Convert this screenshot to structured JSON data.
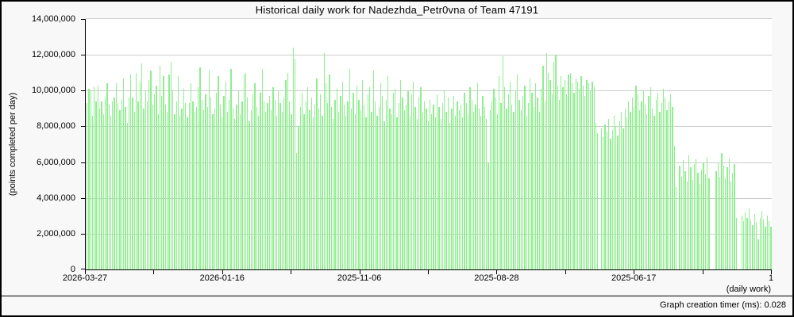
{
  "title": "Historical daily work for Nadezhda_Petr0vna of Team 47191",
  "footer": {
    "label": "Graph creation timer (ms): 0.028"
  },
  "chart_data": {
    "type": "bar",
    "title": "Historical daily work for Nadezhda_Petr0vna of Team 47191",
    "ylabel": "(points completed per day)",
    "xlabel_right": "(daily work)",
    "ylim": [
      0,
      14000000
    ],
    "grid": true,
    "legend": "none",
    "bar_color": "#90EE90",
    "grid_color": "#cccccc",
    "background_color": "#f8f8f8",
    "plot_background_color": "#ffffff",
    "time_direction": "most recent day on the left, oldest day (1) on the right",
    "y_tick_labels": [
      "14,000,000",
      "12,000,000",
      "10,000,000",
      "8,000,000",
      "6,000,000",
      "4,000,000",
      "2,000,000",
      "0"
    ],
    "x_ticks": [
      {
        "label": "2026-03-27",
        "pos": 0
      },
      {
        "label": "2026-01-16",
        "pos": 20
      },
      {
        "label": "2025-11-06",
        "pos": 40
      },
      {
        "label": "2025-08-28",
        "pos": 60
      },
      {
        "label": "2025-06-17",
        "pos": 80
      },
      {
        "label": "1",
        "pos": 100
      }
    ],
    "x_minor_tick_positions": [
      10,
      30,
      50,
      70,
      90
    ],
    "value_unit": "millions of points per day (0 = no work recorded that day)",
    "values": [
      9.3,
      10.1,
      10.0,
      8.6,
      10.2,
      9.4,
      10.3,
      9.0,
      9.4,
      8.7,
      9.6,
      10.4,
      9.2,
      8.6,
      9.4,
      9.6,
      10.4,
      9.3,
      8.9,
      9.5,
      10.7,
      9.1,
      8.2,
      9.6,
      10.9,
      9.6,
      8.8,
      11.0,
      9.4,
      10.5,
      11.5,
      9.0,
      10.0,
      9.4,
      10.6,
      11.1,
      9.2,
      9.8,
      10.3,
      8.7,
      11.4,
      9.7,
      10.8,
      9.2,
      8.8,
      10.9,
      11.6,
      10.0,
      8.7,
      9.4,
      10.8,
      8.6,
      9.0,
      10.1,
      9.3,
      8.5,
      9.3,
      10.4,
      9.4,
      8.8,
      9.1,
      10.2,
      11.3,
      9.5,
      8.9,
      9.8,
      9.1,
      11.1,
      9.6,
      8.7,
      9.0,
      9.9,
      10.8,
      9.2,
      8.5,
      9.7,
      10.5,
      8.8,
      9.5,
      11.2,
      9.0,
      8.4,
      9.2,
      10.0,
      8.7,
      9.4,
      10.9,
      11.0,
      9.6,
      8.3,
      8.9,
      9.8,
      10.4,
      9.1,
      8.6,
      9.9,
      11.2,
      9.4,
      8.8,
      9.3,
      9.7,
      8.9,
      10.2,
      9.5,
      8.6,
      10.0,
      9.3,
      8.8,
      9.6,
      10.6,
      11.0,
      9.4,
      8.7,
      12.4,
      11.8,
      6.5,
      8.0,
      9.1,
      9.9,
      8.7,
      9.4,
      10.2,
      8.9,
      9.6,
      8.5,
      9.2,
      10.7,
      9.0,
      9.8,
      8.6,
      12.1,
      10.4,
      9.3,
      10.9,
      9.1,
      8.4,
      9.5,
      10.1,
      8.8,
      9.7,
      10.5,
      9.2,
      8.6,
      9.4,
      11.2,
      9.0,
      9.9,
      8.7,
      10.3,
      9.5,
      8.9,
      10.6,
      9.2,
      8.5,
      9.8,
      10.2,
      8.8,
      11.1,
      9.4,
      8.6,
      9.1,
      10.4,
      9.7,
      8.3,
      9.5,
      10.8,
      9.0,
      8.7,
      9.9,
      10.1,
      8.5,
      9.3,
      10.6,
      9.6,
      8.9,
      9.2,
      10.0,
      8.6,
      9.8,
      10.5,
      9.1,
      8.4,
      9.6,
      10.2,
      8.8,
      9.4,
      9.0,
      8.3,
      9.5,
      8.7,
      9.2,
      8.5,
      9.8,
      9.1,
      8.4,
      9.3,
      10.0,
      8.8,
      9.6,
      8.2,
      9.0,
      9.7,
      8.6,
      9.4,
      8.9,
      9.2,
      8.5,
      9.9,
      9.3,
      8.7,
      10.2,
      9.5,
      8.8,
      9.2,
      10.4,
      9.0,
      8.6,
      9.7,
      9.1,
      8.4,
      6.0,
      8.9,
      9.4,
      10.1,
      9.6,
      8.7,
      10.8,
      9.3,
      11.9,
      10.2,
      9.0,
      9.8,
      10.5,
      9.2,
      8.8,
      10.0,
      10.9,
      9.5,
      8.9,
      9.7,
      10.3,
      8.6,
      9.3,
      10.7,
      9.9,
      9.1,
      10.4,
      9.6,
      8.8,
      10.1,
      11.4,
      9.4,
      12.1,
      11.0,
      10.6,
      9.8,
      11.6,
      12.0,
      10.3,
      9.5,
      10.8,
      10.2,
      10.6,
      9.8,
      10.9,
      11.0,
      10.4,
      9.9,
      10.7,
      10.5,
      10.1,
      10.8,
      10.3,
      9.7,
      10.6,
      10.4,
      10.0,
      10.5,
      10.2,
      8.2,
      7.6,
      0,
      7.9,
      7.4,
      8.1,
      7.7,
      8.4,
      7.3,
      7.8,
      8.6,
      8.0,
      7.5,
      8.3,
      8.8,
      7.9,
      9.0,
      8.5,
      9.4,
      8.8,
      9.6,
      9.1,
      10.3,
      9.8,
      8.9,
      9.4,
      10.0,
      9.2,
      8.7,
      9.7,
      10.2,
      9.0,
      8.6,
      9.5,
      9.9,
      8.8,
      9.3,
      10.1,
      9.6,
      8.9,
      9.4,
      9.8,
      9.1,
      6.9,
      4.6,
      0,
      5.8,
      5.2,
      6.1,
      5.5,
      4.9,
      6.4,
      5.7,
      5.0,
      5.9,
      6.2,
      5.4,
      4.8,
      5.6,
      6.0,
      5.3,
      6.3,
      5.1,
      0,
      0,
      0,
      5.5,
      6.0,
      5.2,
      6.5,
      5.8,
      5.1,
      5.7,
      6.2,
      4.9,
      5.4,
      5.9,
      2.9,
      0,
      0,
      3.0,
      2.7,
      3.2,
      2.9,
      3.4,
      2.8,
      2.5,
      3.1,
      2.6,
      1.7,
      2.9,
      3.3,
      2.8,
      2.4,
      3.0,
      2.7,
      2.4
    ]
  }
}
